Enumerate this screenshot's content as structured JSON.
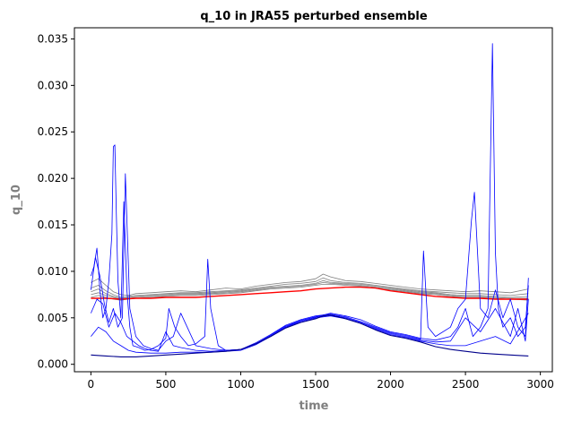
{
  "chart_data": {
    "type": "line",
    "title": "q_10 in JRA55 perturbed ensemble",
    "xlabel": "time",
    "ylabel": "q_10",
    "xlim": [
      -110,
      3080
    ],
    "ylim": [
      -0.0008,
      0.0362
    ],
    "xticks": [
      0,
      500,
      1000,
      1500,
      2000,
      2500,
      3000
    ],
    "xtick_labels": [
      "0",
      "500",
      "1000",
      "1500",
      "2000",
      "2500",
      "3000"
    ],
    "yticks": [
      0.0,
      0.005,
      0.01,
      0.015,
      0.02,
      0.025,
      0.03,
      0.035
    ],
    "ytick_labels": [
      "0.000",
      "0.005",
      "0.010",
      "0.015",
      "0.020",
      "0.025",
      "0.030",
      "0.035"
    ],
    "grid": false,
    "colors": {
      "member_high": "#808080",
      "mean": "#ff0000",
      "member_low": "#0000ff",
      "control": "#00008b"
    },
    "series": [
      {
        "color": "#808080",
        "x": [
          0,
          50,
          100,
          150,
          200,
          250,
          300,
          400,
          500,
          600,
          700,
          800,
          900,
          1000,
          1100,
          1200,
          1300,
          1400,
          1500,
          1550,
          1600,
          1700,
          1800,
          1900,
          2000,
          2100,
          2200,
          2300,
          2400,
          2500,
          2600,
          2700,
          2800,
          2920
        ],
        "y": [
          0.0088,
          0.0092,
          0.0085,
          0.0078,
          0.0075,
          0.0074,
          0.0076,
          0.0077,
          0.0078,
          0.0079,
          0.0078,
          0.008,
          0.0082,
          0.0081,
          0.0084,
          0.0086,
          0.0088,
          0.0089,
          0.0092,
          0.0097,
          0.0094,
          0.009,
          0.0089,
          0.0087,
          0.0085,
          0.0083,
          0.0081,
          0.008,
          0.0079,
          0.0078,
          0.0079,
          0.0078,
          0.0077,
          0.0081
        ]
      },
      {
        "color": "#808080",
        "x": [
          0,
          50,
          100,
          150,
          200,
          250,
          300,
          400,
          500,
          600,
          700,
          800,
          900,
          1000,
          1100,
          1200,
          1300,
          1400,
          1500,
          1550,
          1600,
          1700,
          1800,
          1900,
          2000,
          2100,
          2200,
          2300,
          2400,
          2500,
          2600,
          2700,
          2800,
          2920
        ],
        "y": [
          0.0082,
          0.0085,
          0.0079,
          0.0075,
          0.0072,
          0.0073,
          0.0074,
          0.0075,
          0.0076,
          0.0077,
          0.0077,
          0.0078,
          0.0079,
          0.008,
          0.0082,
          0.0084,
          0.0086,
          0.0087,
          0.0089,
          0.0093,
          0.009,
          0.0088,
          0.0087,
          0.0085,
          0.0083,
          0.0081,
          0.0079,
          0.0078,
          0.0077,
          0.0076,
          0.0076,
          0.0075,
          0.0074,
          0.0076
        ]
      },
      {
        "color": "#808080",
        "x": [
          0,
          50,
          100,
          150,
          200,
          250,
          300,
          400,
          500,
          600,
          700,
          800,
          900,
          1000,
          1100,
          1200,
          1300,
          1400,
          1500,
          1550,
          1600,
          1700,
          1800,
          1900,
          2000,
          2100,
          2200,
          2300,
          2400,
          2500,
          2600,
          2700,
          2800,
          2920
        ],
        "y": [
          0.0078,
          0.0081,
          0.0076,
          0.0073,
          0.0071,
          0.0072,
          0.0073,
          0.0074,
          0.0075,
          0.0076,
          0.0076,
          0.0077,
          0.0078,
          0.0079,
          0.0081,
          0.0083,
          0.0084,
          0.0085,
          0.0087,
          0.009,
          0.0088,
          0.0087,
          0.0086,
          0.0084,
          0.0082,
          0.008,
          0.0078,
          0.0077,
          0.0075,
          0.0074,
          0.0074,
          0.0073,
          0.0072,
          0.0073
        ]
      },
      {
        "color": "#808080",
        "x": [
          0,
          50,
          100,
          150,
          200,
          250,
          300,
          400,
          500,
          600,
          700,
          800,
          900,
          1000,
          1100,
          1200,
          1300,
          1400,
          1500,
          1550,
          1600,
          1700,
          1800,
          1900,
          2000,
          2100,
          2200,
          2300,
          2400,
          2500,
          2600,
          2700,
          2800,
          2920
        ],
        "y": [
          0.0075,
          0.0077,
          0.0074,
          0.0072,
          0.007,
          0.0071,
          0.0072,
          0.0073,
          0.0074,
          0.0075,
          0.0075,
          0.0076,
          0.0077,
          0.0078,
          0.008,
          0.0082,
          0.0083,
          0.0084,
          0.0086,
          0.0088,
          0.0087,
          0.0086,
          0.0085,
          0.0083,
          0.0081,
          0.0079,
          0.0077,
          0.0076,
          0.0074,
          0.0073,
          0.0073,
          0.0072,
          0.0071,
          0.0071
        ]
      },
      {
        "color": "#808080",
        "x": [
          0,
          50,
          100,
          150,
          200,
          250,
          300,
          400,
          500,
          600,
          700,
          800,
          900,
          1000,
          1100,
          1200,
          1300,
          1400,
          1500,
          1550,
          1600,
          1700,
          1800,
          1900,
          2000,
          2100,
          2200,
          2300,
          2400,
          2500,
          2600,
          2700,
          2800,
          2920
        ],
        "y": [
          0.0072,
          0.0074,
          0.0072,
          0.007,
          0.0069,
          0.007,
          0.0071,
          0.0072,
          0.0073,
          0.0074,
          0.0074,
          0.0075,
          0.0076,
          0.0077,
          0.0079,
          0.0081,
          0.0082,
          0.0083,
          0.0085,
          0.0086,
          0.0086,
          0.0085,
          0.0084,
          0.0082,
          0.008,
          0.0078,
          0.0076,
          0.0075,
          0.0073,
          0.0072,
          0.0072,
          0.0071,
          0.007,
          0.0069
        ]
      },
      {
        "color": "#ff0000",
        "x": [
          0,
          100,
          200,
          300,
          400,
          500,
          600,
          700,
          800,
          900,
          1000,
          1100,
          1200,
          1300,
          1400,
          1500,
          1600,
          1700,
          1800,
          1900,
          2000,
          2100,
          2200,
          2300,
          2400,
          2500,
          2600,
          2700,
          2800,
          2920
        ],
        "y": [
          0.0071,
          0.0071,
          0.007,
          0.0071,
          0.0071,
          0.0072,
          0.0072,
          0.0072,
          0.0073,
          0.0074,
          0.0075,
          0.0076,
          0.0077,
          0.0078,
          0.0079,
          0.0081,
          0.0082,
          0.0083,
          0.0083,
          0.0082,
          0.0079,
          0.0077,
          0.0075,
          0.0073,
          0.0072,
          0.0071,
          0.0071,
          0.007,
          0.007,
          0.007
        ]
      },
      {
        "color": "#0000ff",
        "x": [
          0,
          20,
          40,
          60,
          80,
          100,
          120,
          140,
          150,
          160,
          170,
          180,
          200,
          220,
          240,
          260,
          280,
          320,
          360,
          400,
          450,
          500,
          520,
          560,
          600,
          650,
          700,
          760,
          780,
          800,
          850,
          900,
          1000,
          1100,
          1200,
          1300,
          1400,
          1500,
          1600,
          1700,
          1800,
          1900,
          2000,
          2100,
          2200,
          2300,
          2400,
          2450,
          2500,
          2550,
          2600,
          2650,
          2680,
          2700,
          2720,
          2750,
          2800,
          2850,
          2900,
          2920
        ],
        "y": [
          0.0095,
          0.0105,
          0.0125,
          0.008,
          0.005,
          0.006,
          0.009,
          0.014,
          0.0234,
          0.0236,
          0.016,
          0.009,
          0.005,
          0.0175,
          0.008,
          0.004,
          0.002,
          0.0018,
          0.0015,
          0.0016,
          0.002,
          0.0028,
          0.006,
          0.004,
          0.003,
          0.002,
          0.0022,
          0.003,
          0.0113,
          0.006,
          0.002,
          0.0015,
          0.0016,
          0.0022,
          0.003,
          0.004,
          0.0047,
          0.0051,
          0.0055,
          0.0052,
          0.0048,
          0.0041,
          0.0035,
          0.0032,
          0.0028,
          0.0026,
          0.003,
          0.004,
          0.006,
          0.003,
          0.004,
          0.006,
          0.0345,
          0.012,
          0.006,
          0.004,
          0.005,
          0.003,
          0.004,
          0.0085
        ]
      },
      {
        "color": "#0000ff",
        "x": [
          0,
          30,
          60,
          90,
          120,
          150,
          180,
          210,
          230,
          260,
          300,
          350,
          400,
          450,
          500,
          550,
          600,
          700,
          800,
          900,
          1000,
          1100,
          1200,
          1300,
          1400,
          1500,
          1600,
          1700,
          1800,
          1900,
          2000,
          2100,
          2200,
          2220,
          2250,
          2300,
          2400,
          2450,
          2500,
          2540,
          2560,
          2600,
          2650,
          2700,
          2750,
          2800,
          2850,
          2900,
          2920
        ],
        "y": [
          0.008,
          0.0115,
          0.0095,
          0.0065,
          0.0045,
          0.006,
          0.004,
          0.005,
          0.0205,
          0.006,
          0.003,
          0.002,
          0.0017,
          0.0015,
          0.0025,
          0.003,
          0.0055,
          0.002,
          0.0017,
          0.0015,
          0.0016,
          0.0023,
          0.0032,
          0.0042,
          0.0048,
          0.0052,
          0.0054,
          0.0051,
          0.0046,
          0.004,
          0.0034,
          0.0031,
          0.0027,
          0.0122,
          0.004,
          0.003,
          0.004,
          0.006,
          0.007,
          0.0155,
          0.0185,
          0.006,
          0.005,
          0.008,
          0.005,
          0.007,
          0.004,
          0.003,
          0.0093
        ]
      },
      {
        "color": "#0000ff",
        "x": [
          0,
          40,
          80,
          120,
          160,
          200,
          240,
          280,
          320,
          360,
          400,
          450,
          500,
          550,
          600,
          700,
          800,
          900,
          1000,
          1100,
          1200,
          1300,
          1400,
          1500,
          1600,
          1700,
          1800,
          1900,
          2000,
          2100,
          2200,
          2300,
          2400,
          2500,
          2600,
          2700,
          2800,
          2850,
          2900,
          2920
        ],
        "y": [
          0.0055,
          0.007,
          0.0065,
          0.004,
          0.0055,
          0.0045,
          0.003,
          0.0025,
          0.002,
          0.0017,
          0.0015,
          0.0014,
          0.0035,
          0.002,
          0.0018,
          0.0015,
          0.0014,
          0.0015,
          0.0016,
          0.0022,
          0.0031,
          0.0041,
          0.0047,
          0.0051,
          0.0053,
          0.005,
          0.0045,
          0.0039,
          0.0033,
          0.003,
          0.0026,
          0.0024,
          0.0025,
          0.005,
          0.0035,
          0.006,
          0.003,
          0.006,
          0.0025,
          0.007
        ]
      },
      {
        "color": "#0000ff",
        "x": [
          0,
          50,
          100,
          150,
          200,
          250,
          300,
          400,
          500,
          600,
          700,
          800,
          900,
          1000,
          1100,
          1200,
          1300,
          1400,
          1500,
          1600,
          1700,
          1800,
          1900,
          2000,
          2100,
          2200,
          2300,
          2400,
          2500,
          2600,
          2700,
          2800,
          2920
        ],
        "y": [
          0.003,
          0.004,
          0.0035,
          0.0025,
          0.002,
          0.0015,
          0.0013,
          0.0012,
          0.0012,
          0.0013,
          0.0013,
          0.0013,
          0.0014,
          0.0015,
          0.0021,
          0.003,
          0.004,
          0.0046,
          0.005,
          0.0052,
          0.0049,
          0.0044,
          0.0038,
          0.0032,
          0.0029,
          0.0025,
          0.0022,
          0.002,
          0.002,
          0.0025,
          0.003,
          0.0022,
          0.0055
        ]
      },
      {
        "color": "#00008b",
        "x": [
          0,
          100,
          200,
          300,
          400,
          500,
          600,
          700,
          800,
          900,
          1000,
          1100,
          1200,
          1300,
          1400,
          1500,
          1550,
          1600,
          1700,
          1800,
          1900,
          2000,
          2100,
          2200,
          2300,
          2400,
          2500,
          2600,
          2700,
          2800,
          2920
        ],
        "y": [
          0.001,
          0.0009,
          0.0008,
          0.0008,
          0.0009,
          0.001,
          0.0011,
          0.0012,
          0.0013,
          0.0014,
          0.0016,
          0.0022,
          0.003,
          0.0039,
          0.0045,
          0.0049,
          0.0052,
          0.0053,
          0.0049,
          0.0044,
          0.0037,
          0.0031,
          0.0028,
          0.0024,
          0.0019,
          0.0016,
          0.0014,
          0.0012,
          0.0011,
          0.001,
          0.0009
        ]
      }
    ]
  }
}
